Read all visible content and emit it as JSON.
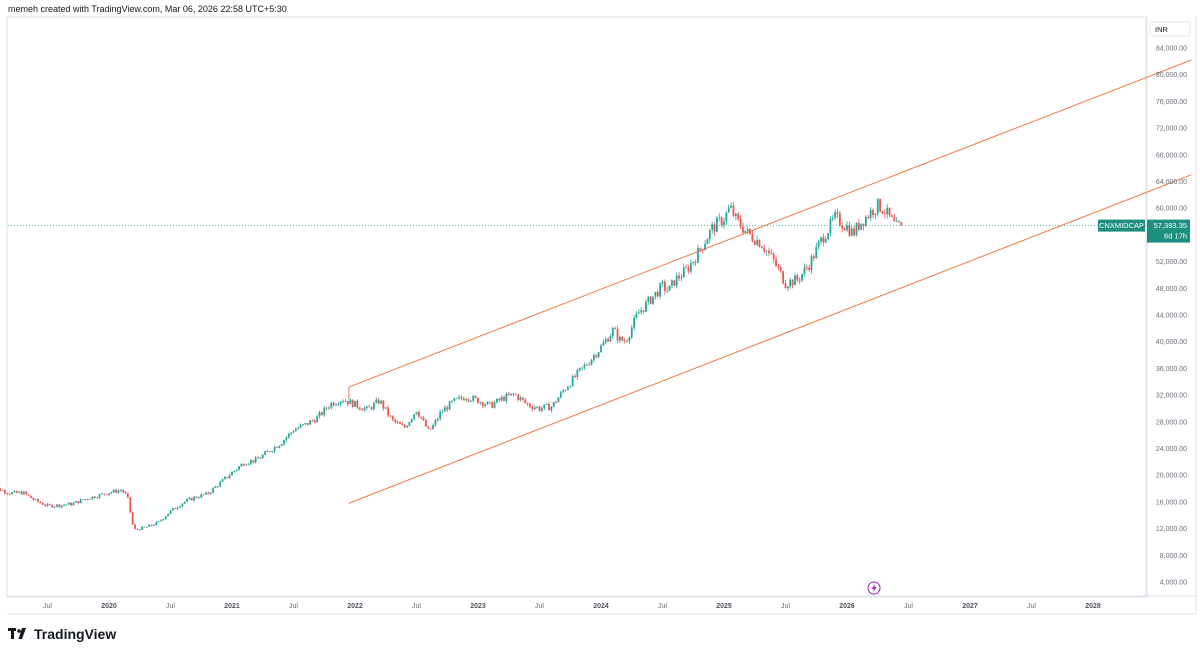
{
  "header": {
    "text": "memeh created with TradingView.com, Mar 06, 2026 22:58 UTC+5:30"
  },
  "footer": {
    "brand": "TradingView"
  },
  "colors": {
    "up": "#26a69a",
    "down": "#ef5350",
    "channel": "#f07b45",
    "price_line": "#26a69a",
    "badge_bg": "#1e8f7f"
  },
  "chart_data": {
    "type": "candlestick",
    "symbol_label": "CNXMIDCAP",
    "currency": "INR",
    "last_price": "57,393.35",
    "countdown": "6d 17h",
    "last_price_value": 57393.35,
    "ylim": [
      4000,
      84000
    ],
    "y_ticks": [
      {
        "value": 84000,
        "label": "84,000.00"
      },
      {
        "value": 80000,
        "label": "80,000.00"
      },
      {
        "value": 76000,
        "label": "76,000.00"
      },
      {
        "value": 72000,
        "label": "72,000.00"
      },
      {
        "value": 68000,
        "label": "68,000.00"
      },
      {
        "value": 64000,
        "label": "64,000.00"
      },
      {
        "value": 60000,
        "label": "60,000.00"
      },
      {
        "value": 52000,
        "label": "52,000.00"
      },
      {
        "value": 48000,
        "label": "48,000.00"
      },
      {
        "value": 44000,
        "label": "44,000.00"
      },
      {
        "value": 40000,
        "label": "40,000.00"
      },
      {
        "value": 36000,
        "label": "36,000.00"
      },
      {
        "value": 32000,
        "label": "32,000.00"
      },
      {
        "value": 28000,
        "label": "28,000.00"
      },
      {
        "value": 24000,
        "label": "24,000.00"
      },
      {
        "value": 20000,
        "label": "20,000.00"
      },
      {
        "value": 16000,
        "label": "16,000.00"
      },
      {
        "value": 12000,
        "label": "12,000.00"
      },
      {
        "value": 8000,
        "label": "8,000.00"
      },
      {
        "value": 4000,
        "label": "4,000.00"
      }
    ],
    "x_ticks": [
      {
        "t": 2019.5,
        "label": "Jul",
        "year": false
      },
      {
        "t": 2020.0,
        "label": "2020",
        "year": true
      },
      {
        "t": 2020.5,
        "label": "Jul",
        "year": false
      },
      {
        "t": 2021.0,
        "label": "2021",
        "year": true
      },
      {
        "t": 2021.5,
        "label": "Jul",
        "year": false
      },
      {
        "t": 2022.0,
        "label": "2022",
        "year": true
      },
      {
        "t": 2022.5,
        "label": "Jul",
        "year": false
      },
      {
        "t": 2023.0,
        "label": "2023",
        "year": true
      },
      {
        "t": 2023.5,
        "label": "Jul",
        "year": false
      },
      {
        "t": 2024.0,
        "label": "2024",
        "year": true
      },
      {
        "t": 2024.5,
        "label": "Jul",
        "year": false
      },
      {
        "t": 2025.0,
        "label": "2025",
        "year": true
      },
      {
        "t": 2025.5,
        "label": "Jul",
        "year": false
      },
      {
        "t": 2026.0,
        "label": "2026",
        "year": true
      },
      {
        "t": 2026.5,
        "label": "Jul",
        "year": false
      },
      {
        "t": 2027.0,
        "label": "2027",
        "year": true
      },
      {
        "t": 2027.5,
        "label": "Jul",
        "year": false
      },
      {
        "t": 2028.0,
        "label": "2028",
        "year": true
      }
    ],
    "closes": [
      {
        "t": 2019.0,
        "v": 17700
      },
      {
        "t": 2019.1,
        "v": 17900
      },
      {
        "t": 2019.2,
        "v": 17300
      },
      {
        "t": 2019.3,
        "v": 17400
      },
      {
        "t": 2019.4,
        "v": 16200
      },
      {
        "t": 2019.5,
        "v": 15400
      },
      {
        "t": 2019.6,
        "v": 15500
      },
      {
        "t": 2019.7,
        "v": 15700
      },
      {
        "t": 2019.8,
        "v": 16400
      },
      {
        "t": 2019.9,
        "v": 16900
      },
      {
        "t": 2020.0,
        "v": 17400
      },
      {
        "t": 2020.1,
        "v": 17800
      },
      {
        "t": 2020.15,
        "v": 16800
      },
      {
        "t": 2020.2,
        "v": 11800
      },
      {
        "t": 2020.3,
        "v": 12200
      },
      {
        "t": 2020.4,
        "v": 12900
      },
      {
        "t": 2020.5,
        "v": 14600
      },
      {
        "t": 2020.6,
        "v": 15900
      },
      {
        "t": 2020.7,
        "v": 16700
      },
      {
        "t": 2020.8,
        "v": 17200
      },
      {
        "t": 2020.9,
        "v": 18800
      },
      {
        "t": 2021.0,
        "v": 20400
      },
      {
        "t": 2021.1,
        "v": 21900
      },
      {
        "t": 2021.2,
        "v": 22300
      },
      {
        "t": 2021.3,
        "v": 23600
      },
      {
        "t": 2021.4,
        "v": 24900
      },
      {
        "t": 2021.5,
        "v": 26800
      },
      {
        "t": 2021.6,
        "v": 27600
      },
      {
        "t": 2021.7,
        "v": 28700
      },
      {
        "t": 2021.8,
        "v": 30700
      },
      {
        "t": 2021.9,
        "v": 31400
      },
      {
        "t": 2022.0,
        "v": 30600
      },
      {
        "t": 2022.1,
        "v": 29800
      },
      {
        "t": 2022.2,
        "v": 31200
      },
      {
        "t": 2022.3,
        "v": 28200
      },
      {
        "t": 2022.4,
        "v": 27100
      },
      {
        "t": 2022.5,
        "v": 29800
      },
      {
        "t": 2022.6,
        "v": 26500
      },
      {
        "t": 2022.65,
        "v": 27800
      },
      {
        "t": 2022.7,
        "v": 29500
      },
      {
        "t": 2022.8,
        "v": 31000
      },
      {
        "t": 2022.9,
        "v": 31800
      },
      {
        "t": 2023.0,
        "v": 31200
      },
      {
        "t": 2023.1,
        "v": 30400
      },
      {
        "t": 2023.2,
        "v": 31500
      },
      {
        "t": 2023.3,
        "v": 32100
      },
      {
        "t": 2023.4,
        "v": 30600
      },
      {
        "t": 2023.5,
        "v": 30000
      },
      {
        "t": 2023.6,
        "v": 30300
      },
      {
        "t": 2023.7,
        "v": 32800
      },
      {
        "t": 2023.8,
        "v": 35000
      },
      {
        "t": 2023.9,
        "v": 37000
      },
      {
        "t": 2024.0,
        "v": 39200
      },
      {
        "t": 2024.1,
        "v": 41800
      },
      {
        "t": 2024.15,
        "v": 40300
      },
      {
        "t": 2024.2,
        "v": 40100
      },
      {
        "t": 2024.3,
        "v": 44200
      },
      {
        "t": 2024.4,
        "v": 46300
      },
      {
        "t": 2024.5,
        "v": 48300
      },
      {
        "t": 2024.55,
        "v": 47600
      },
      {
        "t": 2024.6,
        "v": 49200
      },
      {
        "t": 2024.7,
        "v": 50800
      },
      {
        "t": 2024.8,
        "v": 53600
      },
      {
        "t": 2024.9,
        "v": 56900
      },
      {
        "t": 2025.0,
        "v": 58500
      },
      {
        "t": 2025.05,
        "v": 60100
      },
      {
        "t": 2025.1,
        "v": 58200
      },
      {
        "t": 2025.2,
        "v": 56100
      },
      {
        "t": 2025.3,
        "v": 54800
      },
      {
        "t": 2025.4,
        "v": 52200
      },
      {
        "t": 2025.5,
        "v": 48800
      },
      {
        "t": 2025.6,
        "v": 49300
      },
      {
        "t": 2025.7,
        "v": 51800
      },
      {
        "t": 2025.8,
        "v": 55600
      },
      {
        "t": 2025.85,
        "v": 56900
      },
      {
        "t": 2025.9,
        "v": 58600
      },
      {
        "t": 2026.0,
        "v": 57200
      },
      {
        "t": 2026.05,
        "v": 56200
      },
      {
        "t": 2026.1,
        "v": 57600
      },
      {
        "t": 2026.2,
        "v": 59600
      },
      {
        "t": 2026.25,
        "v": 60400
      },
      {
        "t": 2026.3,
        "v": 59800
      },
      {
        "t": 2026.4,
        "v": 57100
      },
      {
        "t": 2026.45,
        "v": 57393
      }
    ],
    "channel_upper": [
      {
        "t": 2021.95,
        "v": 33200
      },
      {
        "t": 2028.8,
        "v": 82200
      }
    ],
    "channel_lower": [
      {
        "t": 2021.95,
        "v": 15800
      },
      {
        "t": 2028.8,
        "v": 65000
      }
    ]
  }
}
